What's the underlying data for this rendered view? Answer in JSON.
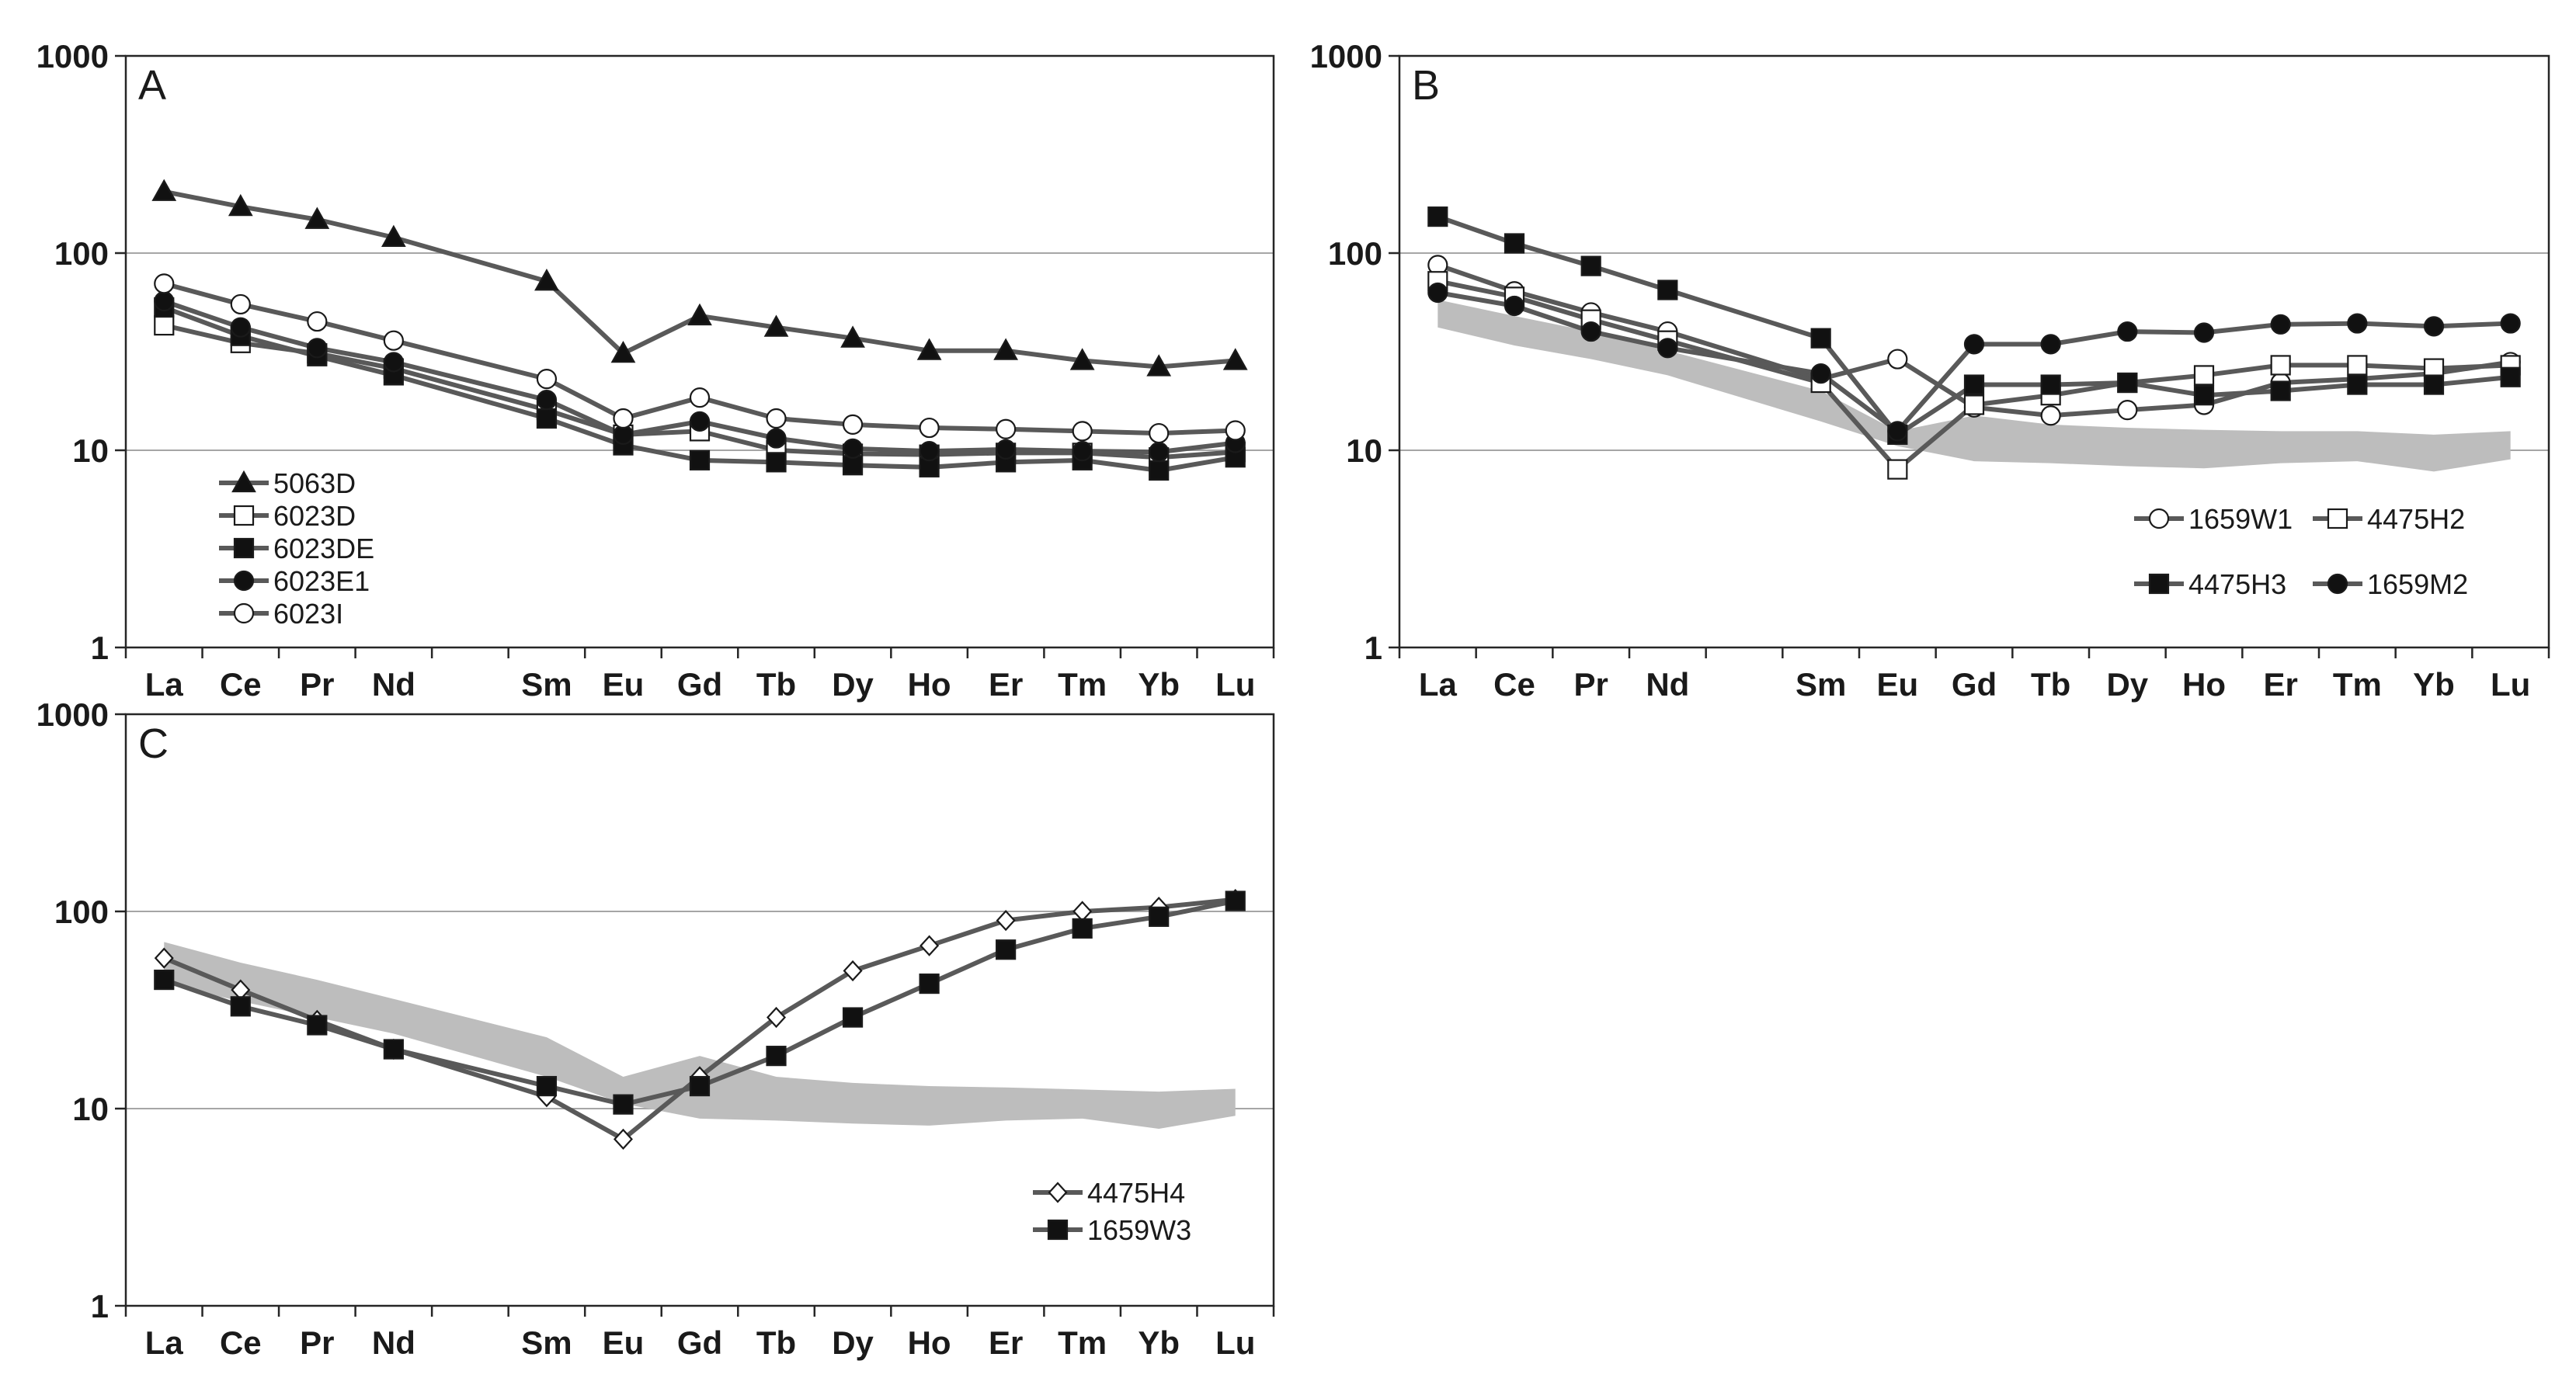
{
  "colors": {
    "line": "#595959",
    "band": "#bdbdbd",
    "grid": "#a6a6a6",
    "axis": "#262626"
  },
  "chart_data": [
    {
      "id": "A",
      "type": "line",
      "panel_label": "A",
      "yscale": "log",
      "ylim": [
        1,
        1000
      ],
      "yticks": [
        "1",
        "10",
        "100",
        "1000"
      ],
      "categories": [
        "La",
        "Ce",
        "Pr",
        "Nd",
        "",
        "Sm",
        "Eu",
        "Gd",
        "Tb",
        "Dy",
        "Ho",
        "Er",
        "Tm",
        "Yb",
        "Lu"
      ],
      "legend_position": "bottom-left",
      "series": [
        {
          "name": "5063D",
          "marker": "triangle-filled",
          "values": [
            205,
            172,
            148,
            120,
            null,
            72,
            31,
            48,
            42,
            37,
            32,
            32,
            28.5,
            26.5,
            28.5
          ]
        },
        {
          "name": "6023D",
          "marker": "square-open",
          "values": [
            43,
            35,
            31,
            26,
            null,
            16,
            12,
            12.5,
            10,
            9.6,
            9.5,
            9.7,
            9.7,
            9.2,
            9.8
          ]
        },
        {
          "name": "6023DE",
          "marker": "square-filled",
          "values": [
            53,
            38,
            30,
            24,
            null,
            14.5,
            10.6,
            8.9,
            8.7,
            8.4,
            8.2,
            8.7,
            8.9,
            7.9,
            9.2
          ]
        },
        {
          "name": "6023E1",
          "marker": "circle-filled",
          "values": [
            57,
            42,
            33,
            28,
            null,
            18,
            12,
            14,
            11.5,
            10.2,
            9.9,
            10.1,
            9.9,
            9.8,
            10.9
          ]
        },
        {
          "name": "6023I",
          "marker": "circle-open",
          "values": [
            70,
            55,
            45,
            36,
            null,
            23,
            14.5,
            18.5,
            14.5,
            13.5,
            13,
            12.8,
            12.5,
            12.2,
            12.6
          ]
        }
      ]
    },
    {
      "id": "B",
      "type": "line",
      "panel_label": "B",
      "yscale": "log",
      "ylim": [
        1,
        1000
      ],
      "yticks": [
        "1",
        "10",
        "100",
        "1000"
      ],
      "categories": [
        "La",
        "Ce",
        "Pr",
        "Nd",
        "",
        "Sm",
        "Eu",
        "Gd",
        "Tb",
        "Dy",
        "Ho",
        "Er",
        "Tm",
        "Yb",
        "Lu"
      ],
      "shaded_range": {
        "upper": [
          58,
          48,
          40,
          32,
          null,
          20,
          12.5,
          15,
          13.5,
          13,
          12.7,
          12.5,
          12.5,
          12,
          12.5
        ],
        "lower": [
          42,
          34,
          29,
          24,
          null,
          14,
          10.5,
          8.8,
          8.6,
          8.3,
          8.1,
          8.6,
          8.8,
          7.8,
          9
        ]
      },
      "legend_position": "right",
      "series": [
        {
          "name": "1659W1",
          "marker": "circle-open",
          "values": [
            87,
            64,
            50,
            40,
            null,
            23,
            29,
            16.5,
            15,
            16,
            17,
            22,
            23,
            24.5,
            28
          ]
        },
        {
          "name": "4475H2",
          "marker": "square-open",
          "values": [
            72,
            60,
            46,
            36,
            null,
            22,
            8,
            17,
            19,
            22,
            24,
            27,
            27,
            26,
            27
          ]
        },
        {
          "name": "4475H3",
          "marker": "square-filled",
          "values": [
            153,
            112,
            86,
            65,
            null,
            37,
            12,
            21.5,
            21.5,
            22,
            19,
            20,
            21.5,
            21.5,
            23.5
          ]
        },
        {
          "name": "1659M2",
          "marker": "circle-filled",
          "values": [
            63,
            54,
            40,
            33,
            null,
            24.5,
            12.5,
            34.5,
            34.5,
            40,
            39.5,
            43.5,
            44,
            42.5,
            44
          ]
        }
      ]
    },
    {
      "id": "C",
      "type": "line",
      "panel_label": "C",
      "yscale": "log",
      "ylim": [
        1,
        1000
      ],
      "yticks": [
        "1",
        "10",
        "100",
        "1000"
      ],
      "categories": [
        "La",
        "Ce",
        "Pr",
        "Nd",
        "",
        "Sm",
        "Eu",
        "Gd",
        "Tb",
        "Dy",
        "Ho",
        "Er",
        "Tm",
        "Yb",
        "Lu"
      ],
      "shaded_range": {
        "upper": [
          70,
          55,
          45,
          36,
          null,
          23,
          14.5,
          18.5,
          14.5,
          13.5,
          13,
          12.8,
          12.5,
          12.2,
          12.6
        ],
        "lower": [
          43,
          35,
          29,
          24,
          null,
          14.5,
          10.6,
          8.9,
          8.7,
          8.4,
          8.2,
          8.7,
          8.9,
          7.9,
          9.2
        ]
      },
      "legend_position": "bottom-right",
      "series": [
        {
          "name": "4475H4",
          "marker": "diamond-open",
          "values": [
            58,
            40,
            28,
            20,
            null,
            11.5,
            7,
            14.5,
            29,
            50,
            67,
            90,
            100,
            105,
            115
          ]
        },
        {
          "name": "1659W3",
          "marker": "square-filled",
          "values": [
            45,
            33,
            26.5,
            20,
            null,
            13,
            10.5,
            13,
            18.5,
            29,
            43,
            64,
            82,
            94,
            113
          ]
        }
      ]
    }
  ]
}
